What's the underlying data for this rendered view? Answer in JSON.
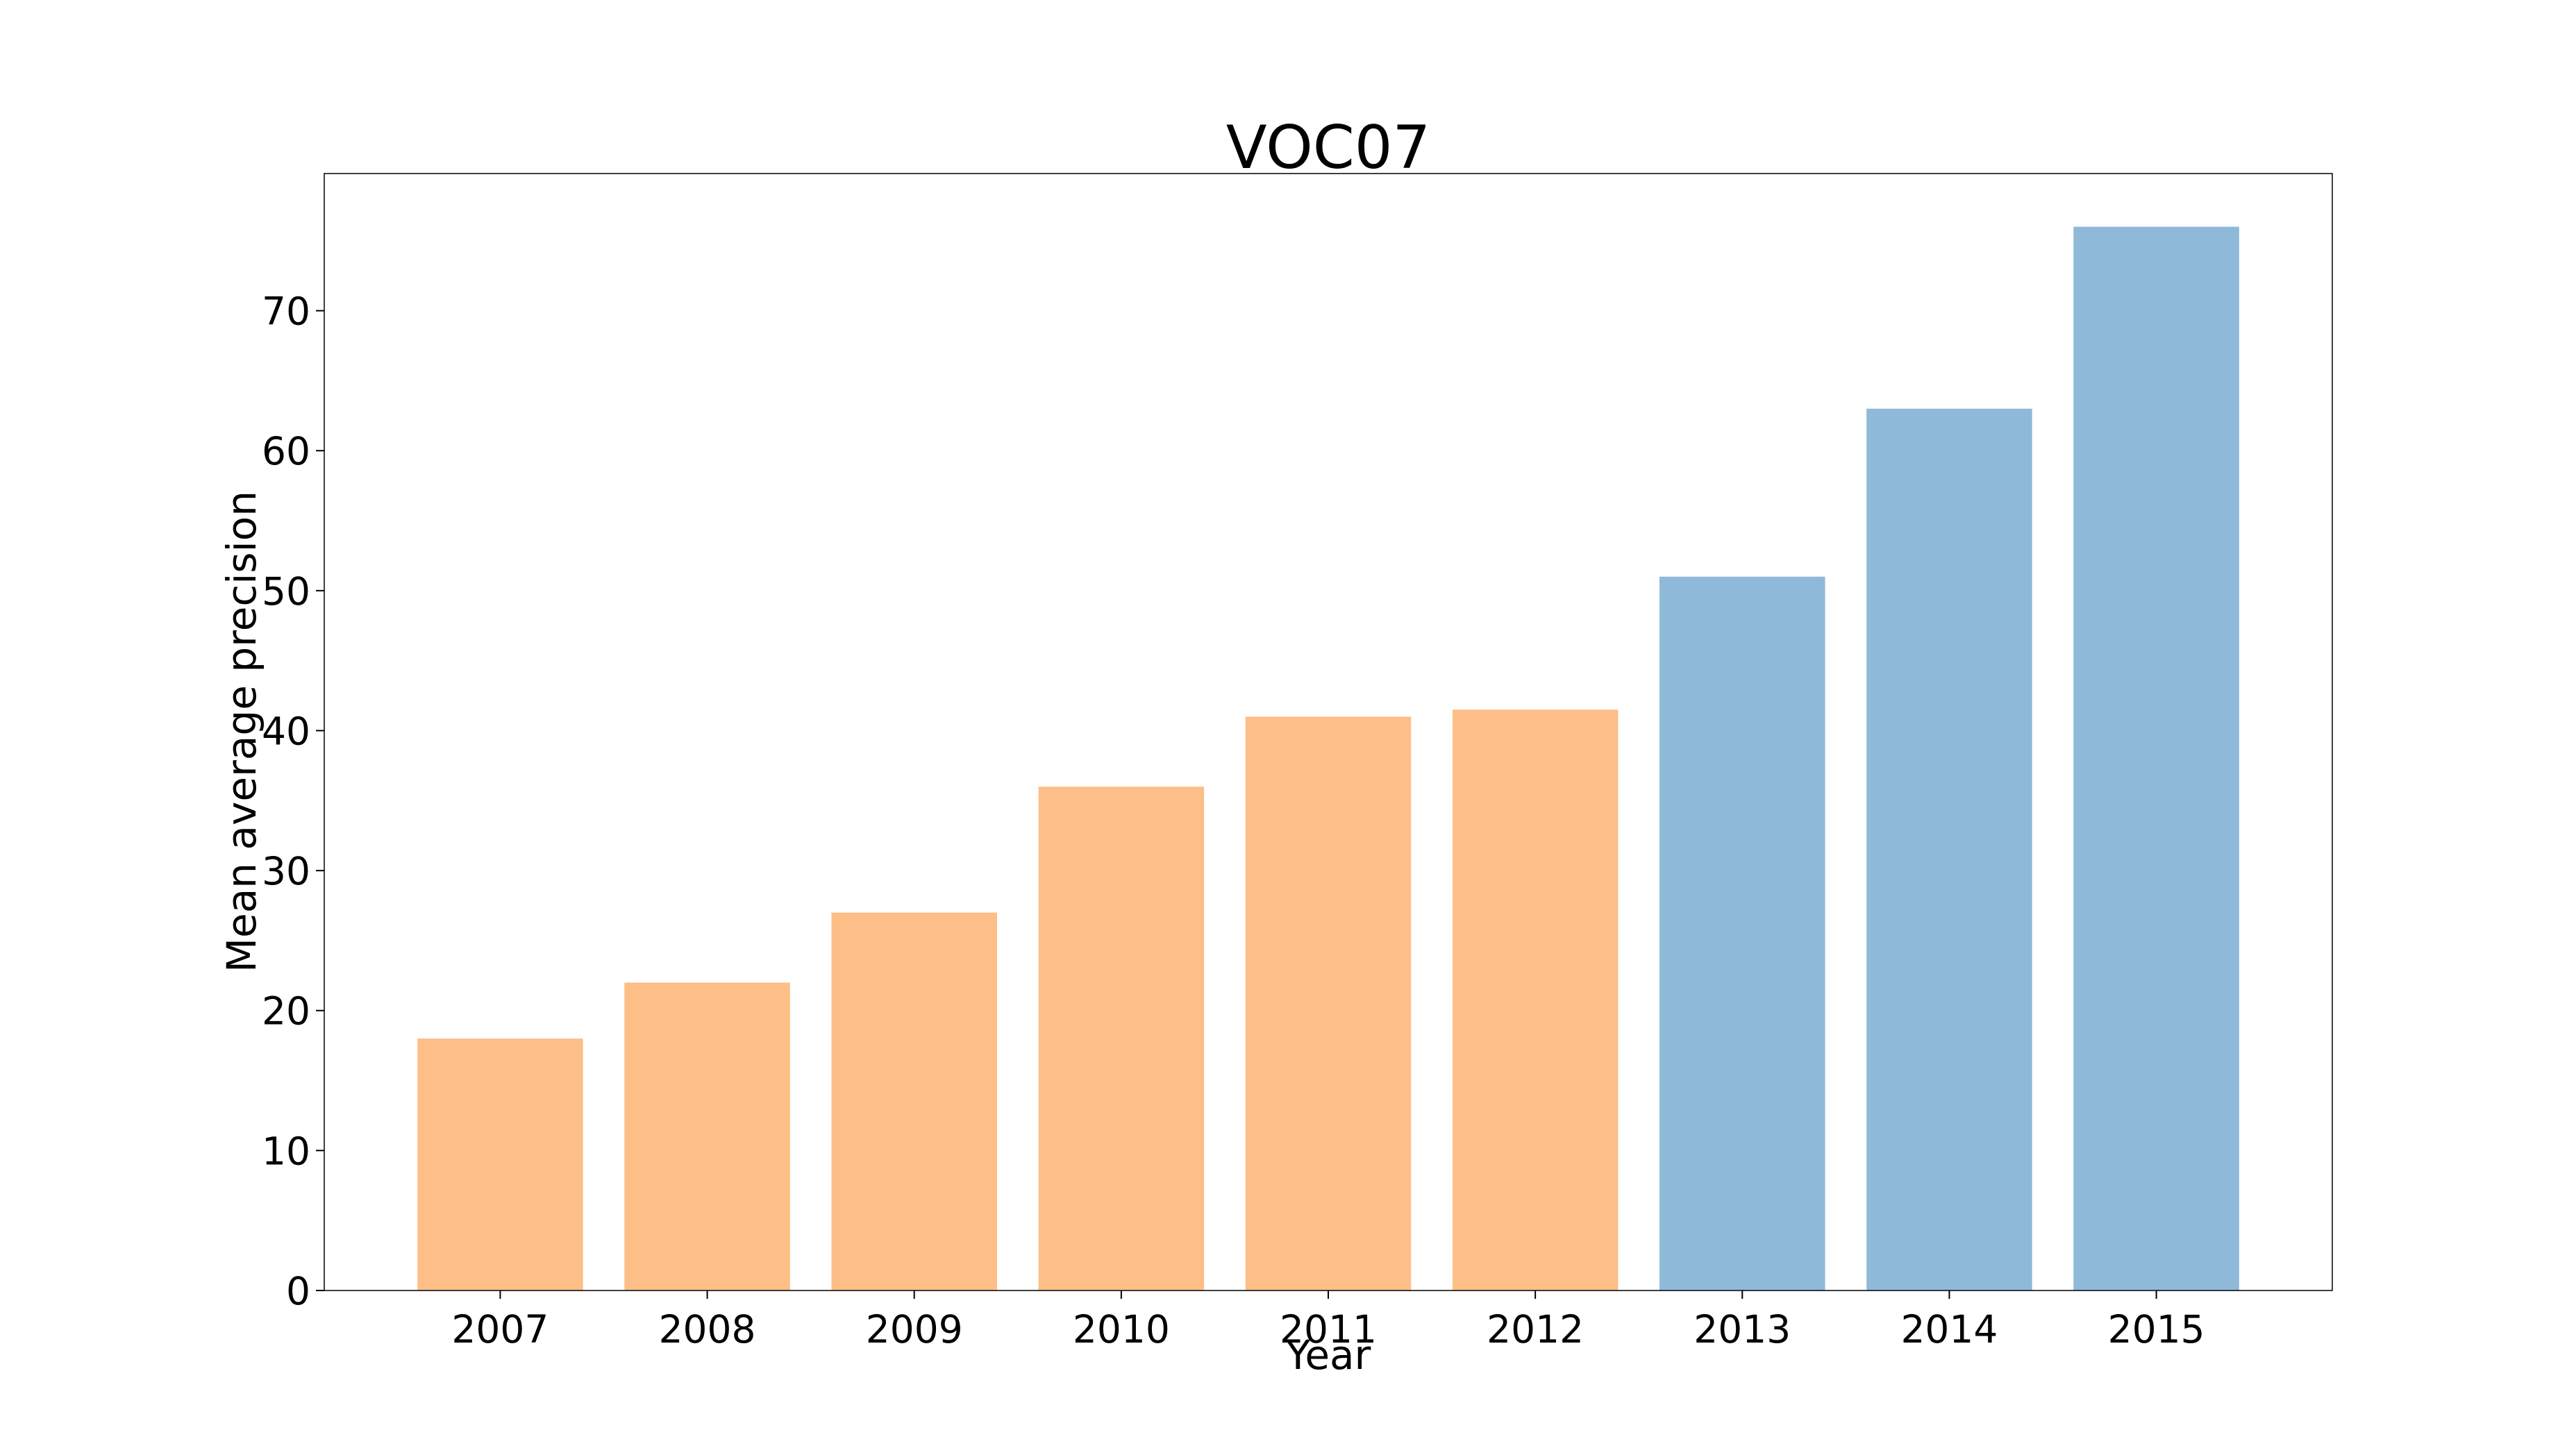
{
  "chart_data": {
    "type": "bar",
    "title": "VOC07",
    "xlabel": "Year",
    "ylabel": "Mean average precision",
    "categories": [
      "2007",
      "2008",
      "2009",
      "2010",
      "2011",
      "2012",
      "2013",
      "2014",
      "2015"
    ],
    "values": [
      18,
      22,
      27,
      36,
      41,
      41.5,
      51,
      63,
      76
    ],
    "bar_colors": [
      "#fdbf87",
      "#fdbf87",
      "#fdbf87",
      "#fdbf87",
      "#fdbf87",
      "#fdbf87",
      "#8fb9d9",
      "#8fb9d9",
      "#8fb9d9"
    ],
    "ylim": [
      0,
      79.8
    ],
    "yticks": [
      0,
      10,
      20,
      30,
      40,
      50,
      60,
      70
    ],
    "grid": false,
    "legend": "none"
  }
}
